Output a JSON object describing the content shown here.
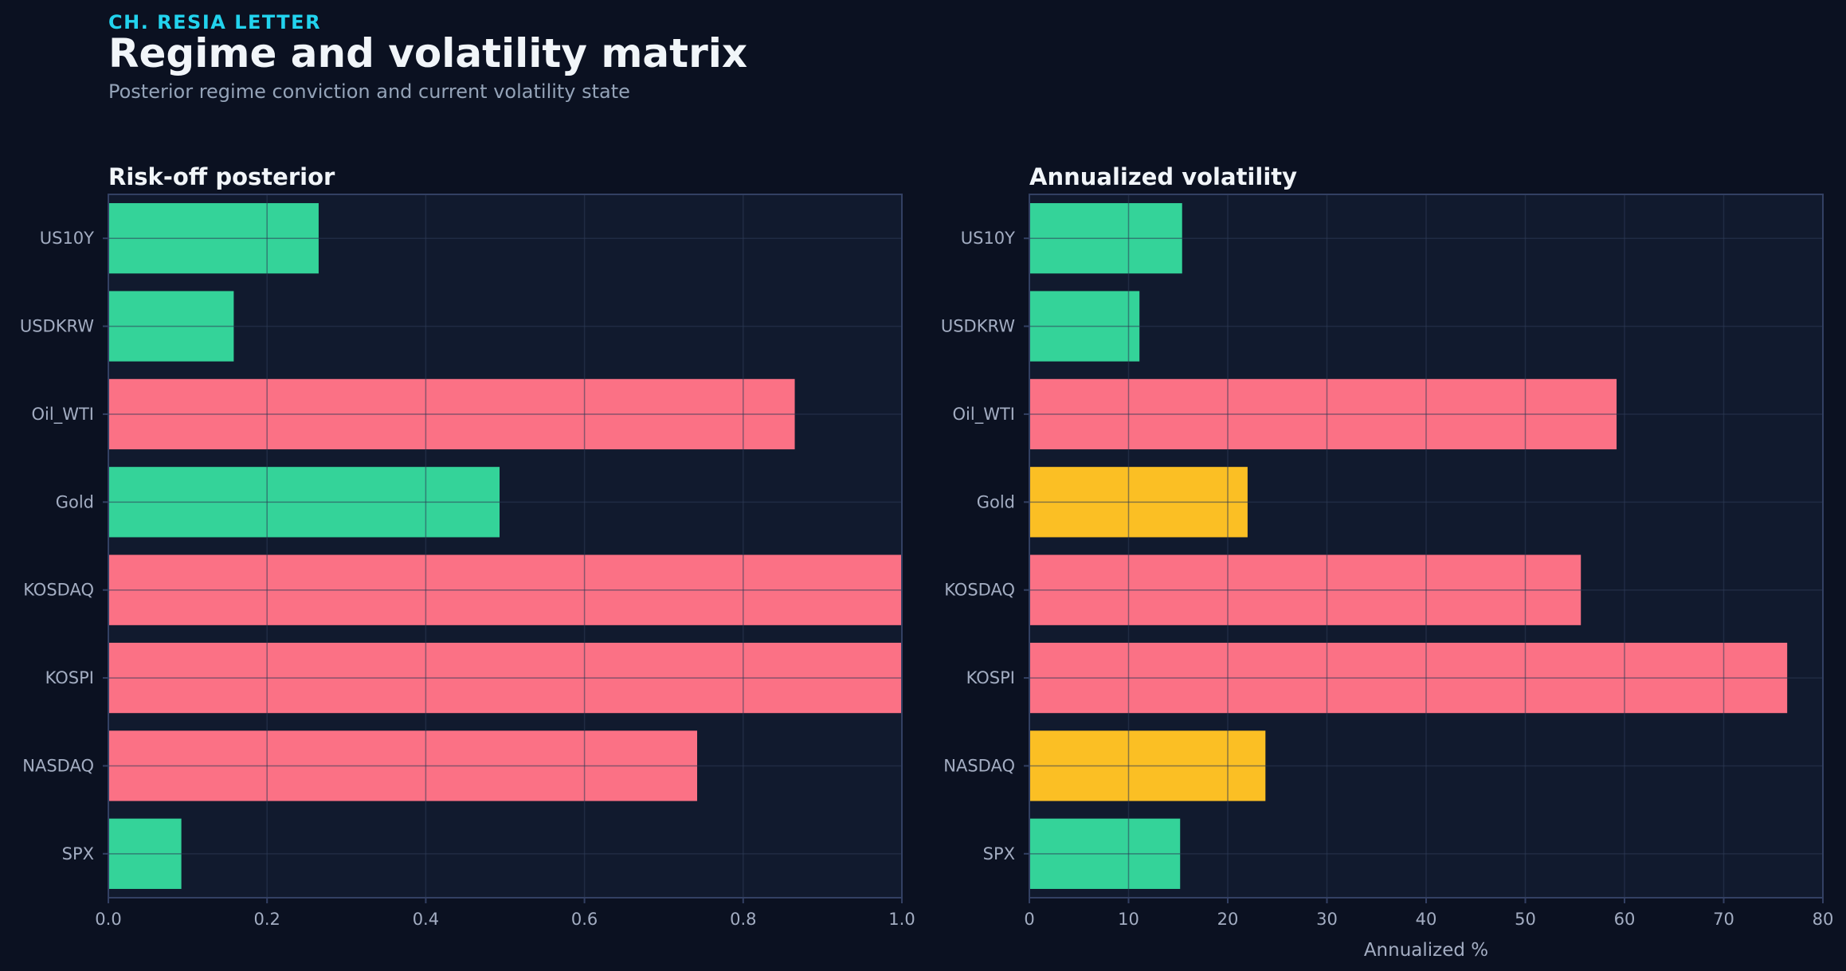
{
  "header": {
    "kicker": "CH. RESIA LETTER",
    "title": "Regime and volatility matrix",
    "subtitle": "Posterior regime conviction and current volatility state"
  },
  "colors": {
    "background": "#0b1121",
    "plot_bg": "#111a2e",
    "frame": "#334063",
    "grid": "#24304a",
    "green": "#34d399",
    "red": "#fb7185",
    "yellow": "#fbbf24"
  },
  "chart_data": [
    {
      "type": "bar",
      "orientation": "horizontal",
      "title": "Risk-off posterior",
      "xlabel": "",
      "ylabel": "",
      "categories": [
        "US10Y",
        "USDKRW",
        "Oil_WTI",
        "Gold",
        "KOSDAQ",
        "KOSPI",
        "NASDAQ",
        "SPX"
      ],
      "values": [
        0.265,
        0.158,
        0.865,
        0.493,
        1.0,
        1.0,
        0.742,
        0.092
      ],
      "bar_colors": [
        "green",
        "green",
        "red",
        "green",
        "red",
        "red",
        "red",
        "green"
      ],
      "xlim": [
        0,
        1.0
      ],
      "xticks": [
        0.0,
        0.2,
        0.4,
        0.6,
        0.8,
        1.0
      ],
      "xtick_labels": [
        "0.0",
        "0.2",
        "0.4",
        "0.6",
        "0.8",
        "1.0"
      ],
      "grid": true
    },
    {
      "type": "bar",
      "orientation": "horizontal",
      "title": "Annualized volatility",
      "xlabel": "Annualized %",
      "ylabel": "",
      "categories": [
        "US10Y",
        "USDKRW",
        "Oil_WTI",
        "Gold",
        "KOSDAQ",
        "KOSPI",
        "NASDAQ",
        "SPX"
      ],
      "values": [
        15.4,
        11.1,
        59.2,
        22.0,
        55.6,
        76.4,
        23.8,
        15.2
      ],
      "bar_colors": [
        "green",
        "green",
        "red",
        "yellow",
        "red",
        "red",
        "yellow",
        "green"
      ],
      "xlim": [
        0,
        80
      ],
      "xticks": [
        0,
        10,
        20,
        30,
        40,
        50,
        60,
        70,
        80
      ],
      "xtick_labels": [
        "0",
        "10",
        "20",
        "30",
        "40",
        "50",
        "60",
        "70",
        "80"
      ],
      "grid": true
    }
  ]
}
